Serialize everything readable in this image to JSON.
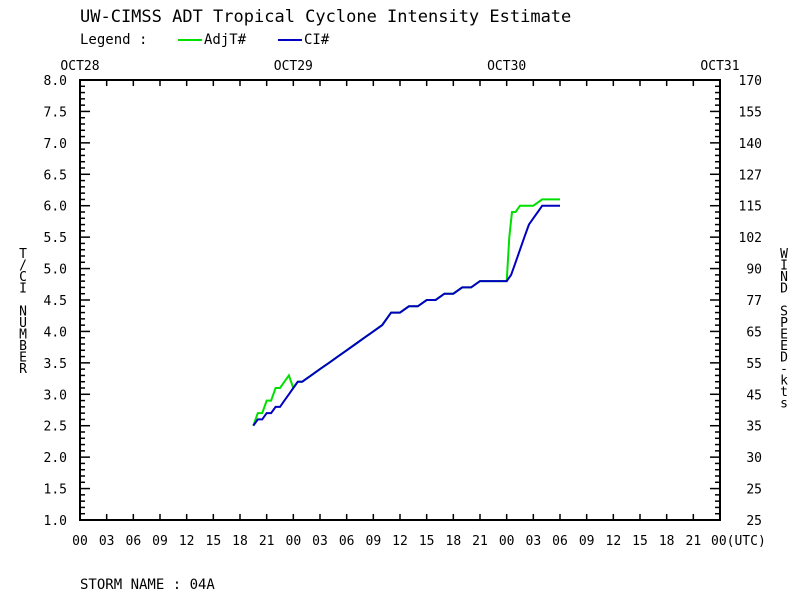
{
  "chart_data": {
    "type": "line",
    "title": "UW-CIMSS ADT Tropical Cyclone Intensity Estimate",
    "legend": {
      "label": "Legend :",
      "placement": "top-left",
      "entries": [
        {
          "name": "AdjT#",
          "color": "#00e000"
        },
        {
          "name": "CI#",
          "color": "#0000c0"
        }
      ]
    },
    "date_labels": [
      "OCT28",
      "OCT29",
      "OCT30",
      "OCT31"
    ],
    "x_tick_labels": [
      "00",
      "03",
      "06",
      "09",
      "12",
      "15",
      "18",
      "21",
      "00",
      "03",
      "06",
      "09",
      "12",
      "15",
      "18",
      "21",
      "00",
      "03",
      "06",
      "09",
      "12",
      "15",
      "18",
      "21",
      "00(UTC)"
    ],
    "x_range_hours": [
      0,
      72
    ],
    "ylabel": "T/CI NUMBER",
    "y2label": "WIND SPEED-kts",
    "ylim": [
      1.0,
      8.0
    ],
    "y_tick_labels": [
      "8.0",
      "7.5",
      "7.0",
      "6.5",
      "6.0",
      "5.5",
      "5.0",
      "4.5",
      "4.0",
      "3.5",
      "3.0",
      "2.5",
      "2.0",
      "1.5",
      "1.0"
    ],
    "y2_tick_labels": [
      "170",
      "155",
      "140",
      "127",
      "115",
      "102",
      "90",
      "77",
      "65",
      "55",
      "45",
      "35",
      "30",
      "25",
      "25"
    ],
    "grid": false,
    "series": [
      {
        "name": "AdjT#",
        "color": "#00e000",
        "x": [
          19.5,
          20.0,
          20.5,
          21.0,
          21.5,
          22.0,
          22.5,
          23.0,
          23.5,
          24.0,
          24.5,
          25.0,
          26.0,
          27.0,
          28.0,
          29.0,
          30.0,
          31.0,
          32.0,
          33.0,
          34.0,
          35.0,
          36.0,
          37.0,
          38.0,
          39.0,
          40.0,
          41.0,
          42.0,
          43.0,
          44.0,
          45.0,
          46.0,
          47.0,
          48.0,
          48.3,
          48.6,
          49.0,
          49.5,
          50.0,
          51.0,
          52.0,
          53.0,
          54.0
        ],
        "values": [
          2.5,
          2.7,
          2.7,
          2.9,
          2.9,
          3.1,
          3.1,
          3.2,
          3.3,
          3.1,
          3.2,
          3.2,
          3.3,
          3.4,
          3.5,
          3.6,
          3.7,
          3.8,
          3.9,
          4.0,
          4.1,
          4.3,
          4.3,
          4.4,
          4.4,
          4.5,
          4.5,
          4.6,
          4.6,
          4.7,
          4.7,
          4.8,
          4.8,
          4.8,
          4.8,
          5.5,
          5.9,
          5.9,
          6.0,
          6.0,
          6.0,
          6.1,
          6.1,
          6.1
        ]
      },
      {
        "name": "CI#",
        "color": "#0000c0",
        "x": [
          19.5,
          20.0,
          20.5,
          21.0,
          21.5,
          22.0,
          22.5,
          23.0,
          23.5,
          24.0,
          24.5,
          25.0,
          26.0,
          27.0,
          28.0,
          29.0,
          30.0,
          31.0,
          32.0,
          33.0,
          34.0,
          35.0,
          36.0,
          37.0,
          38.0,
          39.0,
          40.0,
          41.0,
          42.0,
          43.0,
          44.0,
          45.0,
          46.0,
          47.0,
          48.0,
          48.5,
          49.0,
          49.5,
          50.0,
          50.5,
          51.0,
          51.5,
          52.0,
          52.5,
          53.0,
          54.0
        ],
        "values": [
          2.5,
          2.6,
          2.6,
          2.7,
          2.7,
          2.8,
          2.8,
          2.9,
          3.0,
          3.1,
          3.2,
          3.2,
          3.3,
          3.4,
          3.5,
          3.6,
          3.7,
          3.8,
          3.9,
          4.0,
          4.1,
          4.3,
          4.3,
          4.4,
          4.4,
          4.5,
          4.5,
          4.6,
          4.6,
          4.7,
          4.7,
          4.8,
          4.8,
          4.8,
          4.8,
          4.9,
          5.1,
          5.3,
          5.5,
          5.7,
          5.8,
          5.9,
          6.0,
          6.0,
          6.0,
          6.0
        ]
      }
    ]
  },
  "footer": {
    "storm_label": "STORM NAME : 04A"
  }
}
